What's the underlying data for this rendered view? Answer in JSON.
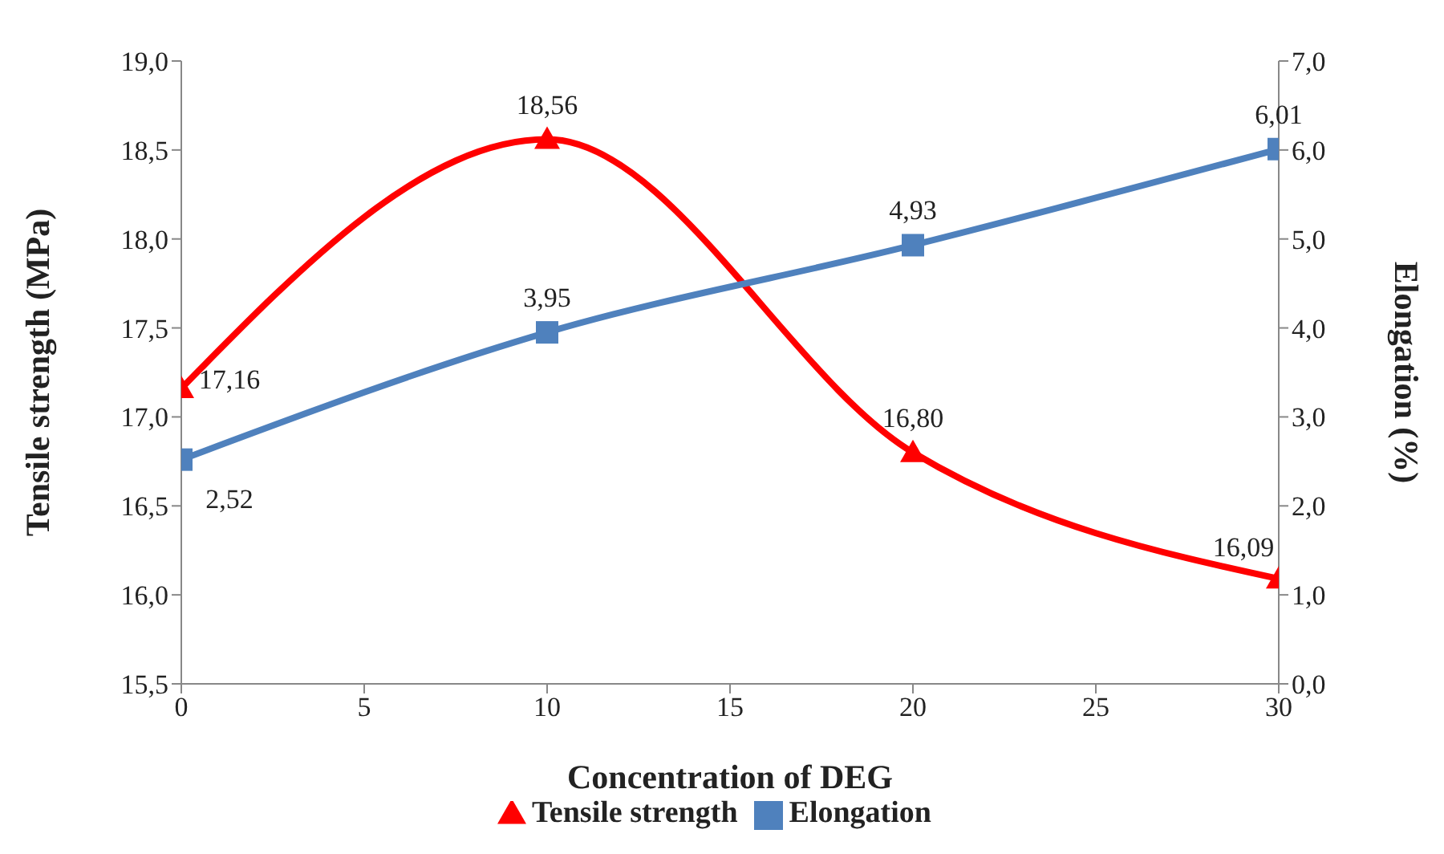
{
  "chart_data": {
    "type": "line",
    "xlabel": "Concentration of DEG",
    "ylabel": "Tensile strength (MPa)",
    "y2label": "Elongation (%)",
    "x": [
      0,
      10,
      20,
      30
    ],
    "xlim": [
      0,
      30
    ],
    "xticks": [
      0,
      5,
      10,
      15,
      20,
      25,
      30
    ],
    "ylim": [
      15.5,
      19.0
    ],
    "yticks": [
      {
        "value": 15.5,
        "label": "15,5"
      },
      {
        "value": 16,
        "label": "16,0"
      },
      {
        "value": 16.5,
        "label": "16,5"
      },
      {
        "value": 17,
        "label": "17,0"
      },
      {
        "value": 17.5,
        "label": "17,5"
      },
      {
        "value": 18,
        "label": "18,0"
      },
      {
        "value": 18.5,
        "label": "18,5"
      },
      {
        "value": 19,
        "label": "19,0"
      }
    ],
    "y2lim": [
      0,
      7
    ],
    "y2ticks": [
      {
        "value": 0,
        "label": "0,0"
      },
      {
        "value": 1,
        "label": "1,0"
      },
      {
        "value": 2,
        "label": "2,0"
      },
      {
        "value": 3,
        "label": "3,0"
      },
      {
        "value": 4,
        "label": "4,0"
      },
      {
        "value": 5,
        "label": "5,0"
      },
      {
        "value": 6,
        "label": "6,0"
      },
      {
        "value": 7,
        "label": "7,0"
      }
    ],
    "series": [
      {
        "name": "Tensile strength",
        "color": "#ff0000",
        "marker": "triangle",
        "values": [
          17.16,
          18.56,
          16.8,
          16.09
        ],
        "value_labels": [
          "17,16",
          "18,56",
          "16,80",
          "16,09"
        ]
      },
      {
        "name": "Elongation",
        "color": "#4f81bd",
        "marker": "square",
        "axis": "y2",
        "values": [
          2.52,
          3.95,
          4.93,
          6.01
        ],
        "value_labels": [
          "2,52",
          "3,95",
          "4,93",
          "6,01"
        ]
      }
    ],
    "legend": "bottom",
    "line_style": "solid"
  }
}
